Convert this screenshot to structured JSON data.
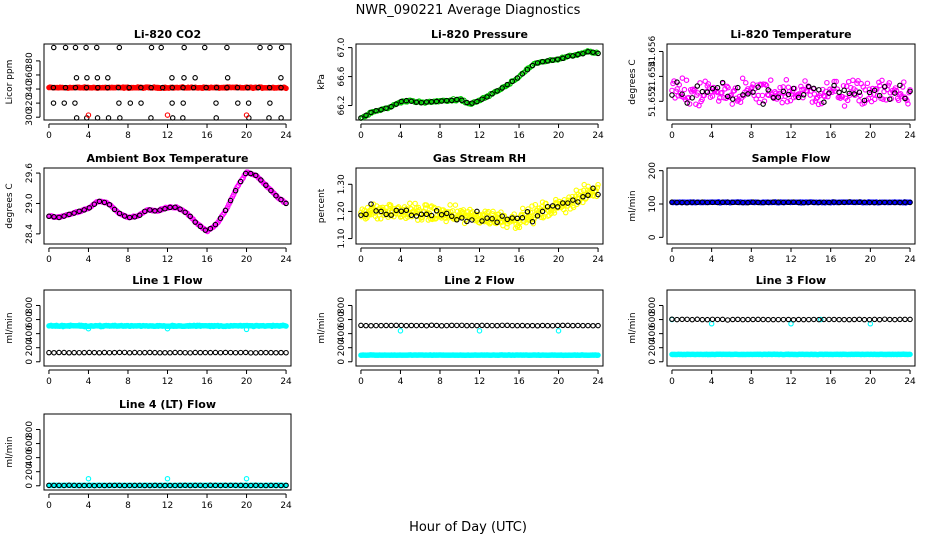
{
  "figure": {
    "title": "NWR_090221  Average Diagnostics",
    "xlabel": "Hour of Day (UTC)"
  },
  "colors": {
    "black": "#000000",
    "red": "#ff0000",
    "green": "#00cc00",
    "magenta": "#ff00ff",
    "yellow": "#ffff00",
    "blue": "#0000ff",
    "cyan": "#00ffff"
  },
  "chart_data": [
    {
      "id": "co2",
      "type": "scatter",
      "title": "Li-820 CO2",
      "ylabel": "Licor ppm",
      "xlim": [
        -0.5,
        24.5
      ],
      "ylim": [
        296,
        404
      ],
      "xticks": [
        0,
        4,
        8,
        12,
        16,
        20,
        24
      ],
      "xtick_labels": [
        "0",
        "4",
        "8",
        "12",
        "16",
        "20",
        "24"
      ],
      "yticks": [
        300,
        320,
        340,
        360,
        380
      ],
      "ytick_labels": [
        "300",
        "320",
        "340",
        "360",
        "380"
      ],
      "series": [
        {
          "name": "red band",
          "color": "red",
          "gen": "band",
          "center": 342,
          "amp": 1.2,
          "n": 260,
          "filled": true
        },
        {
          "name": "black high",
          "color": "black",
          "gen": "levels",
          "levels": [
            399,
            356,
            342,
            320,
            299
          ],
          "n": 22
        },
        {
          "name": "red outliers",
          "color": "red",
          "points": [
            [
              4,
              303
            ],
            [
              12,
              303
            ],
            [
              20,
              303
            ]
          ]
        }
      ]
    },
    {
      "id": "pressure",
      "type": "scatter",
      "title": "Li-820 Pressure",
      "ylabel": "kPa",
      "xlim": [
        -0.5,
        24.5
      ],
      "ylim": [
        66.0,
        67.05
      ],
      "xticks": [
        0,
        4,
        8,
        12,
        16,
        20,
        24
      ],
      "xtick_labels": [
        "0",
        "4",
        "8",
        "12",
        "16",
        "20",
        "24"
      ],
      "yticks": [
        66.2,
        66.6,
        67.0
      ],
      "ytick_labels": [
        "66.2",
        "66.6",
        "67.0"
      ],
      "series": [
        {
          "name": "green",
          "color": "green",
          "gen": "curve",
          "curve": [
            [
              0,
              66.02
            ],
            [
              1,
              66.1
            ],
            [
              2,
              66.14
            ],
            [
              3,
              66.18
            ],
            [
              4,
              66.25
            ],
            [
              5,
              66.27
            ],
            [
              6,
              66.24
            ],
            [
              7,
              66.25
            ],
            [
              8,
              66.26
            ],
            [
              9,
              66.27
            ],
            [
              10,
              66.29
            ],
            [
              11,
              66.22
            ],
            [
              12,
              66.27
            ],
            [
              13,
              66.34
            ],
            [
              14,
              66.42
            ],
            [
              15,
              66.5
            ],
            [
              16,
              66.6
            ],
            [
              17,
              66.72
            ],
            [
              18,
              66.8
            ],
            [
              19,
              66.82
            ],
            [
              20,
              66.84
            ],
            [
              21,
              66.88
            ],
            [
              22,
              66.9
            ],
            [
              23,
              66.95
            ],
            [
              24,
              66.92
            ]
          ],
          "noise": 0.02,
          "n": 160
        },
        {
          "name": "black",
          "color": "black",
          "gen": "curve",
          "curve": [
            [
              0,
              66.02
            ],
            [
              1,
              66.1
            ],
            [
              2,
              66.14
            ],
            [
              3,
              66.18
            ],
            [
              4,
              66.25
            ],
            [
              5,
              66.27
            ],
            [
              6,
              66.24
            ],
            [
              7,
              66.25
            ],
            [
              8,
              66.26
            ],
            [
              9,
              66.27
            ],
            [
              10,
              66.29
            ],
            [
              11,
              66.22
            ],
            [
              12,
              66.27
            ],
            [
              13,
              66.34
            ],
            [
              14,
              66.42
            ],
            [
              15,
              66.5
            ],
            [
              16,
              66.6
            ],
            [
              17,
              66.72
            ],
            [
              18,
              66.8
            ],
            [
              19,
              66.82
            ],
            [
              20,
              66.84
            ],
            [
              21,
              66.88
            ],
            [
              22,
              66.9
            ],
            [
              23,
              66.95
            ],
            [
              24,
              66.92
            ]
          ],
          "noise": 0.01,
          "n": 48
        }
      ]
    },
    {
      "id": "temp820",
      "type": "scatter",
      "title": "Li-820 Temperature",
      "ylabel": "degrees C",
      "xlim": [
        -0.5,
        24.5
      ],
      "ylim": [
        51.6505,
        51.6566
      ],
      "xticks": [
        0,
        4,
        8,
        12,
        16,
        20,
        24
      ],
      "xtick_labels": [
        "0",
        "4",
        "8",
        "12",
        "16",
        "20",
        "24"
      ],
      "yticks": [
        51.652,
        51.654,
        51.656
      ],
      "ytick_labels": [
        "51.652",
        "51.654",
        "51.656"
      ],
      "series": [
        {
          "name": "magenta",
          "color": "magenta",
          "gen": "random",
          "center": 51.6527,
          "spread": 0.0015,
          "n": 230
        },
        {
          "name": "black",
          "color": "black",
          "gen": "random",
          "center": 51.6526,
          "spread": 0.0013,
          "n": 48
        }
      ]
    },
    {
      "id": "ambient",
      "type": "scatter",
      "title": "Ambient Box Temperature",
      "ylabel": "degrees C",
      "xlim": [
        -0.5,
        24.5
      ],
      "ylim": [
        28.2,
        29.7
      ],
      "xticks": [
        0,
        4,
        8,
        12,
        16,
        20,
        24
      ],
      "xtick_labels": [
        "0",
        "4",
        "8",
        "12",
        "16",
        "20",
        "24"
      ],
      "yticks": [
        28.4,
        29.0,
        29.6
      ],
      "ytick_labels": [
        "28.4",
        "29.0",
        "29.6"
      ],
      "series": [
        {
          "name": "magenta",
          "color": "magenta",
          "gen": "curve",
          "curve": [
            [
              0,
              28.75
            ],
            [
              1,
              28.72
            ],
            [
              2,
              28.78
            ],
            [
              3,
              28.84
            ],
            [
              4,
              28.9
            ],
            [
              5,
              29.05
            ],
            [
              6,
              29.0
            ],
            [
              7,
              28.82
            ],
            [
              8,
              28.72
            ],
            [
              9,
              28.75
            ],
            [
              10,
              28.88
            ],
            [
              11,
              28.85
            ],
            [
              12,
              28.92
            ],
            [
              13,
              28.92
            ],
            [
              14,
              28.8
            ],
            [
              15,
              28.6
            ],
            [
              16,
              28.45
            ],
            [
              17,
              28.6
            ],
            [
              18,
              28.9
            ],
            [
              19,
              29.3
            ],
            [
              20,
              29.62
            ],
            [
              21,
              29.55
            ],
            [
              22,
              29.35
            ],
            [
              23,
              29.15
            ],
            [
              24,
              29.0
            ]
          ],
          "noise": 0.02,
          "n": 200
        },
        {
          "name": "black",
          "color": "black",
          "gen": "curve",
          "curve": [
            [
              0,
              28.75
            ],
            [
              1,
              28.72
            ],
            [
              2,
              28.78
            ],
            [
              3,
              28.84
            ],
            [
              4,
              28.9
            ],
            [
              5,
              29.05
            ],
            [
              6,
              29.0
            ],
            [
              7,
              28.82
            ],
            [
              8,
              28.72
            ],
            [
              9,
              28.75
            ],
            [
              10,
              28.88
            ],
            [
              11,
              28.85
            ],
            [
              12,
              28.92
            ],
            [
              13,
              28.92
            ],
            [
              14,
              28.8
            ],
            [
              15,
              28.6
            ],
            [
              16,
              28.45
            ],
            [
              17,
              28.6
            ],
            [
              18,
              28.9
            ],
            [
              19,
              29.3
            ],
            [
              20,
              29.62
            ],
            [
              21,
              29.55
            ],
            [
              22,
              29.35
            ],
            [
              23,
              29.15
            ],
            [
              24,
              29.0
            ]
          ],
          "noise": 0.01,
          "n": 48
        }
      ]
    },
    {
      "id": "rh",
      "type": "scatter",
      "title": "Gas Stream RH",
      "ylabel": "percent",
      "xlim": [
        -0.5,
        24.5
      ],
      "ylim": [
        1.08,
        1.36
      ],
      "xticks": [
        0,
        4,
        8,
        12,
        16,
        20,
        24
      ],
      "xtick_labels": [
        "0",
        "4",
        "8",
        "12",
        "16",
        "20",
        "24"
      ],
      "yticks": [
        1.1,
        1.2,
        1.3
      ],
      "ytick_labels": [
        "1.10",
        "1.20",
        "1.30"
      ],
      "series": [
        {
          "name": "yellow",
          "color": "yellow",
          "gen": "curve",
          "curve": [
            [
              0,
              1.2
            ],
            [
              4,
              1.2
            ],
            [
              8,
              1.19
            ],
            [
              12,
              1.18
            ],
            [
              16,
              1.17
            ],
            [
              20,
              1.22
            ],
            [
              24,
              1.28
            ]
          ],
          "noise": 0.045,
          "n": 360
        },
        {
          "name": "black",
          "color": "black",
          "gen": "curve",
          "curve": [
            [
              0,
              1.2
            ],
            [
              4,
              1.2
            ],
            [
              8,
              1.19
            ],
            [
              12,
              1.18
            ],
            [
              16,
              1.17
            ],
            [
              20,
              1.22
            ],
            [
              24,
              1.28
            ]
          ],
          "noise": 0.03,
          "n": 48
        }
      ]
    },
    {
      "id": "sample",
      "type": "scatter",
      "title": "Sample Flow",
      "ylabel": "ml/min",
      "xlim": [
        -0.5,
        24.5
      ],
      "ylim": [
        -20,
        208
      ],
      "xticks": [
        0,
        4,
        8,
        12,
        16,
        20,
        24
      ],
      "xtick_labels": [
        "0",
        "4",
        "8",
        "12",
        "16",
        "20",
        "24"
      ],
      "yticks": [
        0,
        100,
        200
      ],
      "ytick_labels": [
        "0",
        "100",
        "200"
      ],
      "series": [
        {
          "name": "blue",
          "color": "blue",
          "gen": "band",
          "center": 105,
          "amp": 2,
          "n": 220,
          "filled": true
        },
        {
          "name": "black",
          "color": "black",
          "gen": "band",
          "center": 105,
          "amp": 1.5,
          "n": 48
        }
      ]
    },
    {
      "id": "line1",
      "type": "scatter",
      "title": "Line 1 Flow",
      "ylabel": "ml/min",
      "xlim": [
        -0.5,
        24.5
      ],
      "ylim": [
        -60,
        1020
      ],
      "xticks": [
        0,
        4,
        8,
        12,
        16,
        20,
        24
      ],
      "xtick_labels": [
        "0",
        "4",
        "8",
        "12",
        "16",
        "20",
        "24"
      ],
      "yticks": [
        0,
        200,
        400,
        600,
        800
      ],
      "ytick_labels": [
        "0",
        "200",
        "400",
        "600",
        "800"
      ],
      "series": [
        {
          "name": "cyan high",
          "color": "cyan",
          "gen": "band",
          "center": 510,
          "amp": 12,
          "n": 220,
          "filled": true
        },
        {
          "name": "cyan low",
          "color": "cyan",
          "points": [
            [
              4,
              470
            ],
            [
              12,
              470
            ],
            [
              20,
              460
            ]
          ]
        },
        {
          "name": "black",
          "color": "black",
          "gen": "band",
          "center": 130,
          "amp": 4,
          "n": 48
        }
      ]
    },
    {
      "id": "line2",
      "type": "scatter",
      "title": "Line 2 Flow",
      "ylabel": "ml/min",
      "xlim": [
        -0.5,
        24.5
      ],
      "ylim": [
        -60,
        1020
      ],
      "xticks": [
        0,
        4,
        8,
        12,
        16,
        20,
        24
      ],
      "xtick_labels": [
        "0",
        "4",
        "8",
        "12",
        "16",
        "20",
        "24"
      ],
      "yticks": [
        0,
        200,
        400,
        600,
        800
      ],
      "ytick_labels": [
        "0",
        "200",
        "400",
        "600",
        "800"
      ],
      "series": [
        {
          "name": "cyan low",
          "color": "cyan",
          "gen": "band",
          "center": 95,
          "amp": 4,
          "n": 220,
          "filled": true
        },
        {
          "name": "cyan dips",
          "color": "cyan",
          "points": [
            [
              4,
              440
            ],
            [
              12,
              440
            ],
            [
              20,
              440
            ]
          ]
        },
        {
          "name": "black",
          "color": "black",
          "gen": "band",
          "center": 515,
          "amp": 5,
          "n": 48
        }
      ]
    },
    {
      "id": "line3",
      "type": "scatter",
      "title": "Line 3 Flow",
      "ylabel": "ml/min",
      "xlim": [
        -0.5,
        24.5
      ],
      "ylim": [
        -60,
        1020
      ],
      "xticks": [
        0,
        4,
        8,
        12,
        16,
        20,
        24
      ],
      "xtick_labels": [
        "0",
        "4",
        "8",
        "12",
        "16",
        "20",
        "24"
      ],
      "yticks": [
        0,
        200,
        400,
        600,
        800
      ],
      "ytick_labels": [
        "0",
        "200",
        "400",
        "600",
        "800"
      ],
      "series": [
        {
          "name": "cyan low",
          "color": "cyan",
          "gen": "band",
          "center": 105,
          "amp": 4,
          "n": 220,
          "filled": true
        },
        {
          "name": "cyan dips",
          "color": "cyan",
          "points": [
            [
              0,
              600
            ],
            [
              4,
              540
            ],
            [
              12,
              540
            ],
            [
              15,
              600
            ],
            [
              20,
              540
            ]
          ]
        },
        {
          "name": "black",
          "color": "black",
          "gen": "band",
          "center": 600,
          "amp": 6,
          "n": 48
        }
      ]
    },
    {
      "id": "line4",
      "type": "scatter",
      "title": "Line 4 (LT) Flow",
      "ylabel": "ml/min",
      "xlim": [
        -0.5,
        24.5
      ],
      "ylim": [
        -60,
        1020
      ],
      "xticks": [
        0,
        4,
        8,
        12,
        16,
        20,
        24
      ],
      "xtick_labels": [
        "0",
        "4",
        "8",
        "12",
        "16",
        "20",
        "24"
      ],
      "yticks": [
        0,
        200,
        400,
        600,
        800
      ],
      "ytick_labels": [
        "0",
        "200",
        "400",
        "600",
        "800"
      ],
      "series": [
        {
          "name": "cyan base",
          "color": "cyan",
          "gen": "band",
          "center": 5,
          "amp": 3,
          "n": 220,
          "filled": true
        },
        {
          "name": "cyan spikes",
          "color": "cyan",
          "points": [
            [
              4,
              100
            ],
            [
              12,
              100
            ],
            [
              20,
              100
            ]
          ]
        },
        {
          "name": "black",
          "color": "black",
          "gen": "band",
          "center": 5,
          "amp": 3,
          "n": 48
        }
      ]
    }
  ]
}
